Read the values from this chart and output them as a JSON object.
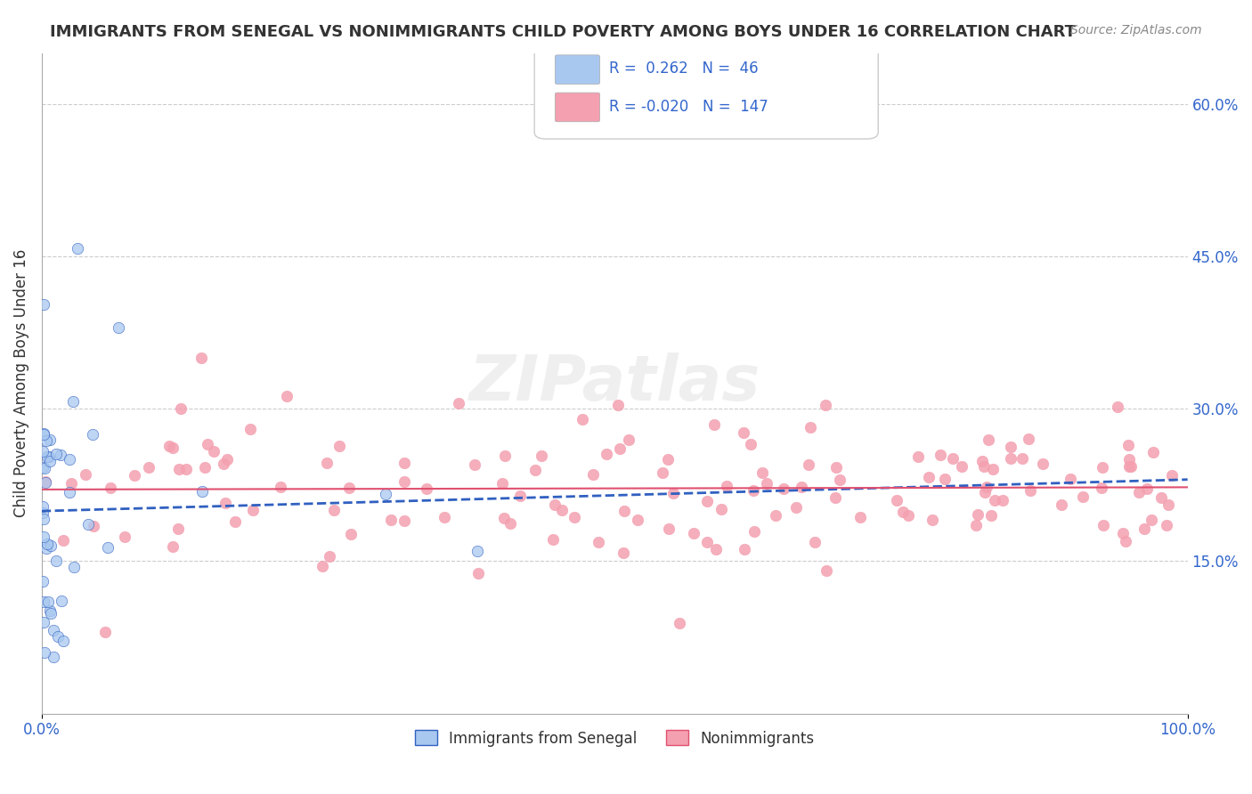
{
  "title": "IMMIGRANTS FROM SENEGAL VS NONIMMIGRANTS CHILD POVERTY AMONG BOYS UNDER 16 CORRELATION CHART",
  "source": "Source: ZipAtlas.com",
  "ylabel": "Child Poverty Among Boys Under 16",
  "xlim": [
    0,
    1
  ],
  "ylim": [
    0,
    0.65
  ],
  "y_tick_values_right": [
    0.6,
    0.45,
    0.3,
    0.15
  ],
  "blue_R": 0.262,
  "blue_N": 46,
  "pink_R": -0.02,
  "pink_N": 147,
  "blue_color": "#a8c8f0",
  "pink_color": "#f4a0b0",
  "blue_line_color": "#3060c0",
  "pink_line_color": "#e05070",
  "background_color": "#ffffff",
  "grid_color": "#cccccc"
}
